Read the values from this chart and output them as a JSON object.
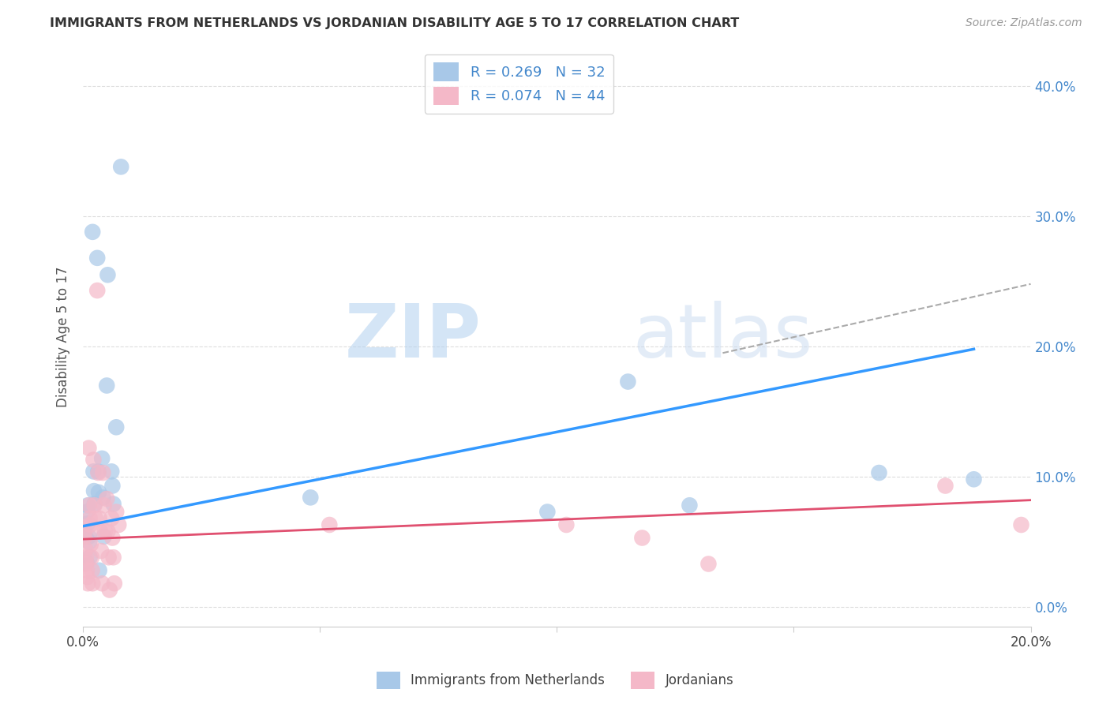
{
  "title": "IMMIGRANTS FROM NETHERLANDS VS JORDANIAN DISABILITY AGE 5 TO 17 CORRELATION CHART",
  "source": "Source: ZipAtlas.com",
  "ylabel": "Disability Age 5 to 17",
  "legend_entry1": "R = 0.269   N = 32",
  "legend_entry2": "R = 0.074   N = 44",
  "legend_label1": "Immigrants from Netherlands",
  "legend_label2": "Jordanians",
  "blue_color": "#a8c8e8",
  "pink_color": "#f4b8c8",
  "blue_line_color": "#3399ff",
  "pink_line_color": "#e05070",
  "dashed_line_color": "#aaaaaa",
  "xlim": [
    0.0,
    0.2
  ],
  "ylim": [
    -0.015,
    0.43
  ],
  "yticks": [
    0.0,
    0.1,
    0.2,
    0.3,
    0.4
  ],
  "xticks": [
    0.0,
    0.05,
    0.1,
    0.15,
    0.2
  ],
  "blue_points": [
    [
      0.0005,
      0.054
    ],
    [
      0.0007,
      0.034
    ],
    [
      0.0008,
      0.073
    ],
    [
      0.0009,
      0.064
    ],
    [
      0.001,
      0.078
    ],
    [
      0.0012,
      0.054
    ],
    [
      0.0013,
      0.05
    ],
    [
      0.0014,
      0.038
    ],
    [
      0.002,
      0.288
    ],
    [
      0.0022,
      0.104
    ],
    [
      0.0023,
      0.089
    ],
    [
      0.0024,
      0.079
    ],
    [
      0.003,
      0.268
    ],
    [
      0.0032,
      0.104
    ],
    [
      0.0033,
      0.088
    ],
    [
      0.0034,
      0.028
    ],
    [
      0.004,
      0.114
    ],
    [
      0.0042,
      0.084
    ],
    [
      0.0044,
      0.054
    ],
    [
      0.005,
      0.17
    ],
    [
      0.0052,
      0.255
    ],
    [
      0.006,
      0.104
    ],
    [
      0.0062,
      0.093
    ],
    [
      0.0064,
      0.079
    ],
    [
      0.007,
      0.138
    ],
    [
      0.008,
      0.338
    ],
    [
      0.048,
      0.084
    ],
    [
      0.098,
      0.073
    ],
    [
      0.115,
      0.173
    ],
    [
      0.128,
      0.078
    ],
    [
      0.168,
      0.103
    ],
    [
      0.188,
      0.098
    ]
  ],
  "pink_points": [
    [
      0.0003,
      0.058
    ],
    [
      0.0004,
      0.054
    ],
    [
      0.0005,
      0.044
    ],
    [
      0.0006,
      0.038
    ],
    [
      0.0007,
      0.033
    ],
    [
      0.0008,
      0.028
    ],
    [
      0.0009,
      0.023
    ],
    [
      0.001,
      0.018
    ],
    [
      0.0012,
      0.122
    ],
    [
      0.0013,
      0.078
    ],
    [
      0.0014,
      0.068
    ],
    [
      0.0015,
      0.063
    ],
    [
      0.0016,
      0.048
    ],
    [
      0.0018,
      0.038
    ],
    [
      0.0019,
      0.028
    ],
    [
      0.002,
      0.018
    ],
    [
      0.0022,
      0.113
    ],
    [
      0.0024,
      0.078
    ],
    [
      0.0026,
      0.068
    ],
    [
      0.003,
      0.243
    ],
    [
      0.0032,
      0.103
    ],
    [
      0.0034,
      0.068
    ],
    [
      0.0036,
      0.058
    ],
    [
      0.0038,
      0.043
    ],
    [
      0.004,
      0.018
    ],
    [
      0.0042,
      0.103
    ],
    [
      0.0044,
      0.078
    ],
    [
      0.0046,
      0.058
    ],
    [
      0.005,
      0.083
    ],
    [
      0.0052,
      0.058
    ],
    [
      0.0054,
      0.038
    ],
    [
      0.0056,
      0.013
    ],
    [
      0.006,
      0.068
    ],
    [
      0.0062,
      0.053
    ],
    [
      0.0064,
      0.038
    ],
    [
      0.0066,
      0.018
    ],
    [
      0.007,
      0.073
    ],
    [
      0.0075,
      0.063
    ],
    [
      0.052,
      0.063
    ],
    [
      0.102,
      0.063
    ],
    [
      0.118,
      0.053
    ],
    [
      0.132,
      0.033
    ],
    [
      0.182,
      0.093
    ],
    [
      0.198,
      0.063
    ]
  ],
  "blue_line_x": [
    0.0,
    0.188
  ],
  "blue_line_y": [
    0.062,
    0.198
  ],
  "pink_line_x": [
    0.0,
    0.2
  ],
  "pink_line_y": [
    0.052,
    0.082
  ],
  "dashed_line_x": [
    0.135,
    0.2
  ],
  "dashed_line_y": [
    0.195,
    0.248
  ],
  "watermark_zip": "ZIP",
  "watermark_atlas": "atlas",
  "background_color": "#ffffff",
  "grid_color": "#dddddd",
  "title_color": "#333333",
  "source_color": "#999999",
  "axis_label_color": "#4488cc"
}
